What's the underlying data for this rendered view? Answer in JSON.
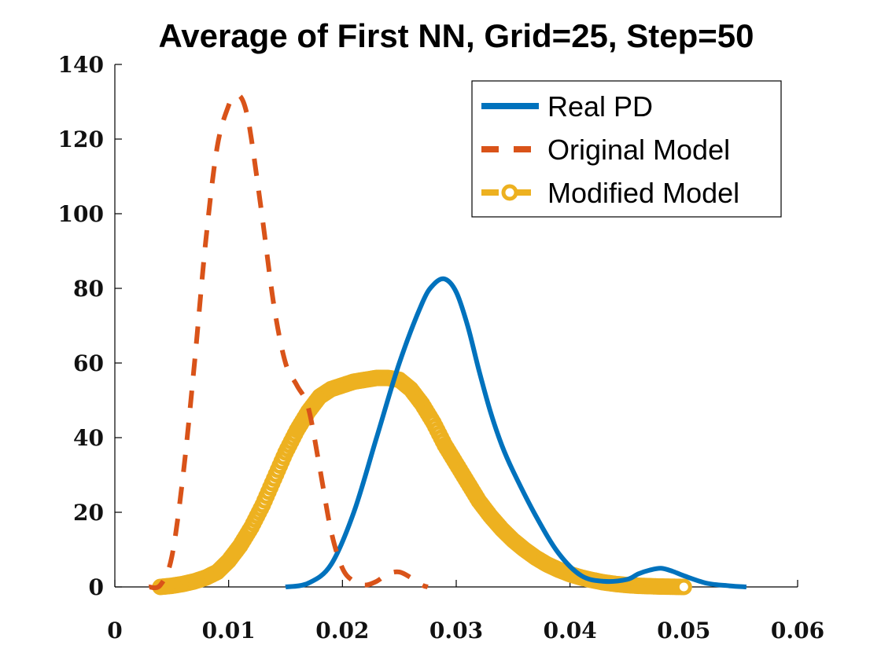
{
  "chart_data": {
    "type": "line",
    "title": "Average of First NN, Grid=25, Step=50",
    "xlim": [
      0,
      0.06
    ],
    "ylim": [
      0,
      140
    ],
    "x_ticks": [
      "0",
      "0.01",
      "0.02",
      "0.03",
      "0.04",
      "0.05",
      "0.06"
    ],
    "y_ticks": [
      "0",
      "20",
      "40",
      "60",
      "80",
      "100",
      "120",
      "140"
    ],
    "x_tick_values": [
      0,
      0.01,
      0.02,
      0.03,
      0.04,
      0.05,
      0.06
    ],
    "y_tick_values": [
      0,
      20,
      40,
      60,
      80,
      100,
      120,
      140
    ],
    "legend_position": "top-right",
    "grid": false,
    "series": [
      {
        "name": "Real PD",
        "style": "solid",
        "color": "#0072BD",
        "x": [
          0.015,
          0.017,
          0.019,
          0.021,
          0.023,
          0.025,
          0.027,
          0.028,
          0.029,
          0.03,
          0.031,
          0.032,
          0.033,
          0.034,
          0.035,
          0.037,
          0.039,
          0.041,
          0.043,
          0.045,
          0.046,
          0.047,
          0.048,
          0.049,
          0.05,
          0.052,
          0.054,
          0.0555
        ],
        "y": [
          0,
          1,
          6,
          20,
          40,
          60,
          76,
          81,
          82.5,
          79,
          70,
          58,
          47,
          38,
          31,
          19,
          9,
          3,
          1.5,
          2,
          3.5,
          4.5,
          5,
          4.2,
          3,
          1,
          0.3,
          0
        ]
      },
      {
        "name": "Original Model",
        "style": "dashed",
        "color": "#D95319",
        "x": [
          0.003,
          0.004,
          0.005,
          0.006,
          0.007,
          0.008,
          0.009,
          0.01,
          0.0105,
          0.011,
          0.0115,
          0.012,
          0.013,
          0.014,
          0.015,
          0.016,
          0.017,
          0.018,
          0.019,
          0.02,
          0.021,
          0.022,
          0.023,
          0.024,
          0.025,
          0.026,
          0.027,
          0.0275
        ],
        "y": [
          0,
          0.5,
          8,
          30,
          60,
          93,
          118,
          129,
          131,
          131.5,
          128,
          120,
          98,
          75,
          60,
          54,
          48,
          32,
          15,
          5,
          1.5,
          0.5,
          1.5,
          3.5,
          4,
          2.5,
          0.5,
          0
        ]
      },
      {
        "name": "Modified Model",
        "style": "solid-circles",
        "color": "#EDB120",
        "x": [
          0.004,
          0.005,
          0.006,
          0.007,
          0.008,
          0.009,
          0.01,
          0.011,
          0.012,
          0.013,
          0.014,
          0.015,
          0.016,
          0.017,
          0.018,
          0.019,
          0.02,
          0.021,
          0.022,
          0.023,
          0.024,
          0.025,
          0.026,
          0.027,
          0.028,
          0.029,
          0.03,
          0.031,
          0.032,
          0.033,
          0.034,
          0.035,
          0.036,
          0.037,
          0.038,
          0.039,
          0.04,
          0.041,
          0.042,
          0.043,
          0.044,
          0.045,
          0.046,
          0.047,
          0.048,
          0.049,
          0.05
        ],
        "y": [
          0,
          0.3,
          0.8,
          1.5,
          2.5,
          4,
          7,
          11,
          16,
          22,
          29,
          36,
          42,
          47,
          51,
          53,
          54,
          55,
          55.5,
          56,
          56,
          55.5,
          53,
          49,
          44,
          38,
          33,
          28,
          23,
          19,
          15.5,
          12.5,
          10,
          7.8,
          6,
          4.6,
          3.4,
          2.5,
          1.8,
          1.2,
          0.8,
          0.5,
          0.3,
          0.2,
          0.1,
          0.05,
          0
        ]
      }
    ]
  }
}
